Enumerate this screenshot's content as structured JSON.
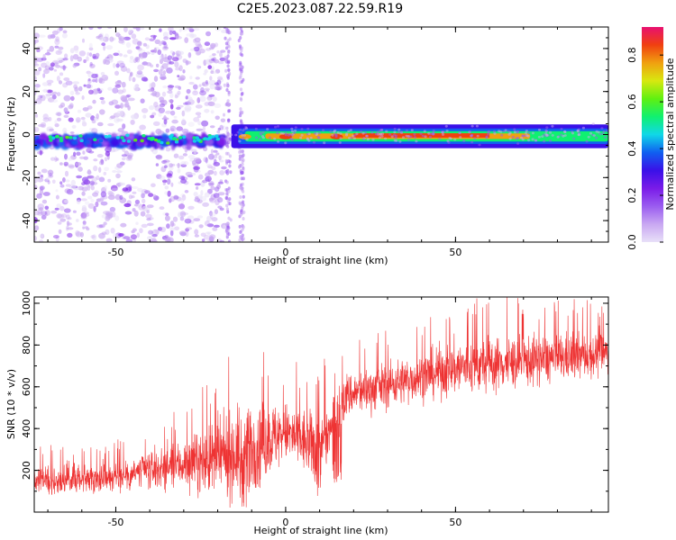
{
  "title": "C2E5.2023.087.22.59.R19",
  "colors": {
    "snr_line": "#ee3333",
    "colormap": [
      "#e8e0f8",
      "#c9a8f2",
      "#9a5cf0",
      "#7a1be8",
      "#3a10e8",
      "#1060f0",
      "#10d8e8",
      "#10f070",
      "#60f010",
      "#d8e810",
      "#f0a010",
      "#f04010",
      "#e81070"
    ]
  },
  "chart_data": [
    {
      "type": "heatmap",
      "title": "C2E5.2023.087.22.59.R19",
      "xlabel": "Height of straight line (km)",
      "ylabel": "Frequency (Hz)",
      "xlim": [
        -74,
        95
      ],
      "ylim": [
        -50,
        50
      ],
      "xticks": [
        -50,
        0,
        50
      ],
      "yticks": [
        -40,
        -20,
        0,
        20,
        40
      ],
      "colorbar": {
        "label": "Normalized spectral amplitude",
        "range": [
          0.0,
          0.92
        ],
        "ticks": [
          "0.0",
          "0.2",
          "0.4",
          "0.6",
          "0.8"
        ]
      },
      "regions": [
        {
          "x_range": [
            -74,
            -18
          ],
          "description_level": "scattered low-amplitude noise across all frequencies; band near 0 Hz with amplitude 0.2-0.4",
          "band_center_hz": -3
        },
        {
          "x_range": [
            -18,
            20
          ],
          "band_center_hz": -1,
          "peak_amplitude": 0.9
        },
        {
          "x_range": [
            20,
            95
          ],
          "band_center_hz": 0,
          "peak_amplitude": 0.88
        }
      ]
    },
    {
      "type": "line",
      "xlabel": "Height of straight line (km)",
      "ylabel": "SNR (10 * v/v)",
      "xlim": [
        -74,
        95
      ],
      "ylim": [
        0,
        1030
      ],
      "xticks": [
        -50,
        0,
        50
      ],
      "yticks": [
        200,
        400,
        600,
        800,
        1000
      ],
      "envelope": [
        {
          "x": -74,
          "mean": 150,
          "max": 300
        },
        {
          "x": -50,
          "mean": 170,
          "max": 330
        },
        {
          "x": -30,
          "mean": 230,
          "max": 480
        },
        {
          "x": -20,
          "mean": 250,
          "max": 650
        },
        {
          "x": -12,
          "mean": 300,
          "max": 800
        },
        {
          "x": 0,
          "mean": 380,
          "max": 700
        },
        {
          "x": 10,
          "mean": 300,
          "max": 680
        },
        {
          "x": 18,
          "mean": 560,
          "max": 800
        },
        {
          "x": 40,
          "mean": 650,
          "max": 900
        },
        {
          "x": 50,
          "mean": 690,
          "max": 1000
        },
        {
          "x": 75,
          "mean": 730,
          "max": 1000
        },
        {
          "x": 95,
          "mean": 760,
          "max": 990
        }
      ],
      "dips": [
        {
          "x": -12,
          "min": 20
        },
        {
          "x": 10,
          "min": 60
        },
        {
          "x": 15,
          "min": 140
        }
      ]
    }
  ]
}
